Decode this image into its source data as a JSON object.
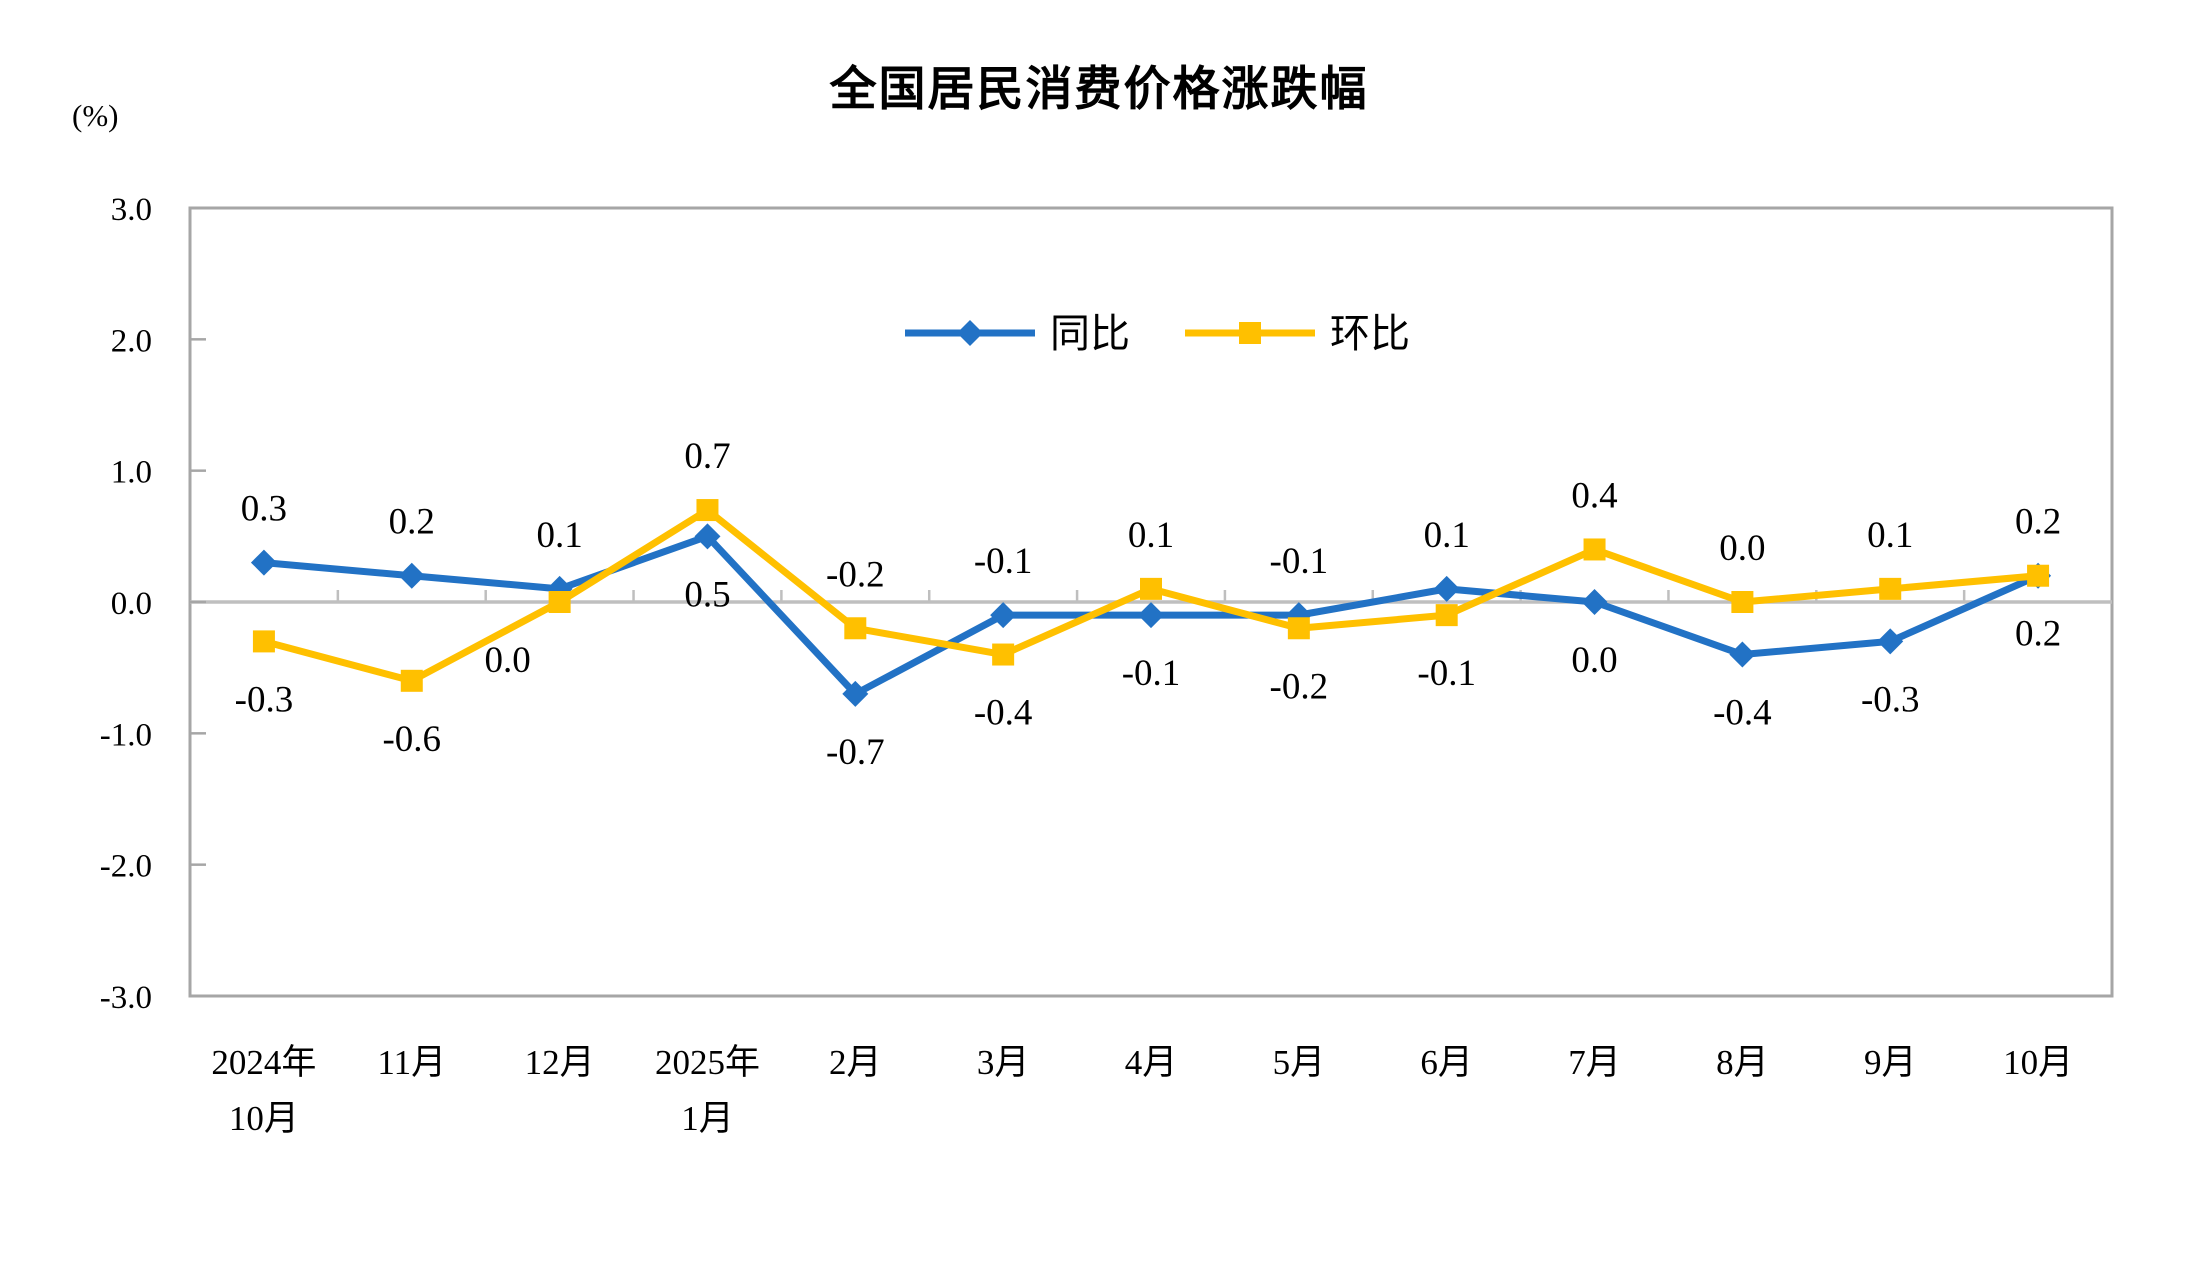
{
  "chart_data": {
    "type": "line",
    "title": "全国居民消费价格涨跌幅",
    "unit_label": "(%)",
    "ylim": [
      -3.0,
      3.0
    ],
    "y_ticks": [
      3.0,
      2.0,
      1.0,
      0.0,
      -1.0,
      -2.0,
      -3.0
    ],
    "y_tick_labels": [
      "3.0",
      "2.0",
      "1.0",
      "0.0",
      "-1.0",
      "-2.0",
      "-3.0"
    ],
    "grid": "zero-line-only",
    "legend_position": "top-center-inside",
    "categories": [
      [
        "2024年",
        "10月"
      ],
      [
        "11月"
      ],
      [
        "12月"
      ],
      [
        "2025年",
        "1月"
      ],
      [
        "2月"
      ],
      [
        "3月"
      ],
      [
        "4月"
      ],
      [
        "5月"
      ],
      [
        "6月"
      ],
      [
        "7月"
      ],
      [
        "8月"
      ],
      [
        "9月"
      ],
      [
        "10月"
      ]
    ],
    "series": [
      {
        "key": "yoy",
        "name": "同比",
        "color": "#2272C5",
        "marker": "diamond",
        "values": [
          0.3,
          0.2,
          0.1,
          0.5,
          -0.7,
          -0.1,
          -0.1,
          -0.1,
          0.1,
          0.0,
          -0.4,
          -0.3,
          0.2
        ],
        "labels": [
          "0.3",
          "0.2",
          "0.1",
          "0.5",
          "-0.7",
          "-0.1",
          "-0.1",
          "-0.1",
          "0.1",
          "0.0",
          "-0.4",
          "-0.3",
          "0.2"
        ],
        "label_positions": [
          "above",
          "above",
          "above",
          "below",
          "below",
          "above",
          "below",
          "above",
          "above",
          "below",
          "below",
          "below",
          "below"
        ]
      },
      {
        "key": "mom",
        "name": "环比",
        "color": "#FFC000",
        "marker": "square",
        "values": [
          -0.3,
          -0.6,
          0.0,
          0.7,
          -0.2,
          -0.4,
          0.1,
          -0.2,
          -0.1,
          0.4,
          0.0,
          0.1,
          0.2
        ],
        "labels": [
          "-0.3",
          "-0.6",
          "0.0",
          "0.7",
          "-0.2",
          "-0.4",
          "0.1",
          "-0.2",
          "-0.1",
          "0.4",
          "0.0",
          "0.1",
          "0.2"
        ],
        "label_positions": [
          "below",
          "below",
          "below",
          "above",
          "above",
          "below",
          "above",
          "below",
          "below",
          "above",
          "above",
          "above",
          "above"
        ]
      }
    ],
    "label_nudges": [
      {
        "series": 1,
        "point": 2,
        "dx": -52,
        "dy": 0
      }
    ],
    "colors": {
      "axis_border": "#A6A6A6",
      "zero_line": "#BFBFBF",
      "text": "#000000"
    }
  }
}
